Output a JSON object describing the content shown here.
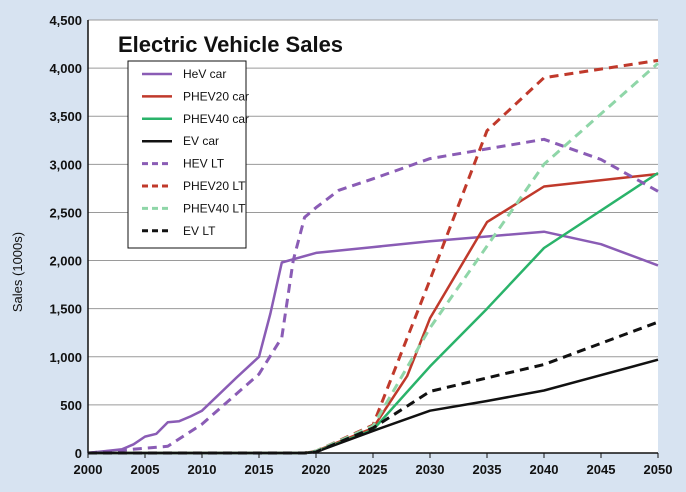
{
  "chart_data": {
    "type": "line",
    "title": "Electric Vehicle Sales",
    "xlabel": "",
    "ylabel": "Sales (1000s)",
    "xlim": [
      2000,
      2050
    ],
    "ylim": [
      0,
      4500
    ],
    "x_ticks": [
      "2000",
      "2005",
      "2010",
      "2015",
      "2020",
      "2025",
      "2030",
      "2035",
      "2040",
      "2045",
      "2050"
    ],
    "y_ticks": [
      "0",
      "500",
      "1,000",
      "1,500",
      "2,000",
      "2,500",
      "3,000",
      "3,500",
      "4,000",
      "4,500"
    ],
    "grid": "horizontal",
    "legend_position": "top-left",
    "series": [
      {
        "name": "HeV car",
        "color": "#8a5cb5",
        "dash": "solid",
        "x": [
          2000,
          2003,
          2004,
          2005,
          2006,
          2007,
          2008,
          2009,
          2010,
          2013,
          2015,
          2016,
          2017,
          2020,
          2025,
          2030,
          2035,
          2040,
          2045,
          2050
        ],
        "y": [
          0,
          40,
          90,
          170,
          200,
          320,
          330,
          380,
          440,
          780,
          1000,
          1450,
          1980,
          2080,
          2140,
          2200,
          2250,
          2300,
          2170,
          1950
        ]
      },
      {
        "name": "PHEV20 car",
        "color": "#c0392b",
        "dash": "solid",
        "x": [
          2000,
          2019,
          2020,
          2025,
          2028,
          2030,
          2035,
          2040,
          2050
        ],
        "y": [
          0,
          0,
          20,
          260,
          800,
          1400,
          2400,
          2770,
          2900
        ]
      },
      {
        "name": "PHEV40 car",
        "color": "#2ab36a",
        "dash": "solid",
        "x": [
          2000,
          2019,
          2020,
          2025,
          2030,
          2035,
          2040,
          2050
        ],
        "y": [
          0,
          0,
          15,
          240,
          900,
          1500,
          2130,
          2910
        ]
      },
      {
        "name": "EV car",
        "color": "#111111",
        "dash": "solid",
        "x": [
          2000,
          2019,
          2020,
          2025,
          2030,
          2035,
          2040,
          2050
        ],
        "y": [
          0,
          0,
          10,
          230,
          440,
          540,
          650,
          970
        ]
      },
      {
        "name": "HEV LT",
        "color": "#8a5cb5",
        "dash": "dashed",
        "x": [
          2000,
          2005,
          2007,
          2010,
          2015,
          2017,
          2018,
          2019,
          2020,
          2022,
          2025,
          2030,
          2035,
          2040,
          2045,
          2050
        ],
        "y": [
          0,
          50,
          70,
          300,
          820,
          1200,
          2000,
          2450,
          2550,
          2730,
          2850,
          3060,
          3160,
          3260,
          3050,
          2720
        ]
      },
      {
        "name": "PHEV20 LT",
        "color": "#c0392b",
        "dash": "dashed",
        "x": [
          2000,
          2019,
          2020,
          2025,
          2030,
          2035,
          2040,
          2050
        ],
        "y": [
          0,
          0,
          20,
          290,
          1800,
          3350,
          3900,
          4080
        ]
      },
      {
        "name": "PHEV40 LT",
        "color": "#8fd6a8",
        "dash": "dashed",
        "x": [
          2000,
          2019,
          2020,
          2025,
          2030,
          2035,
          2040,
          2050
        ],
        "y": [
          0,
          0,
          20,
          280,
          1300,
          2150,
          3000,
          4050
        ]
      },
      {
        "name": "EV LT",
        "color": "#111111",
        "dash": "dashed",
        "x": [
          2000,
          2019,
          2020,
          2025,
          2030,
          2035,
          2040,
          2050
        ],
        "y": [
          0,
          0,
          10,
          260,
          640,
          780,
          920,
          1360
        ]
      }
    ]
  }
}
